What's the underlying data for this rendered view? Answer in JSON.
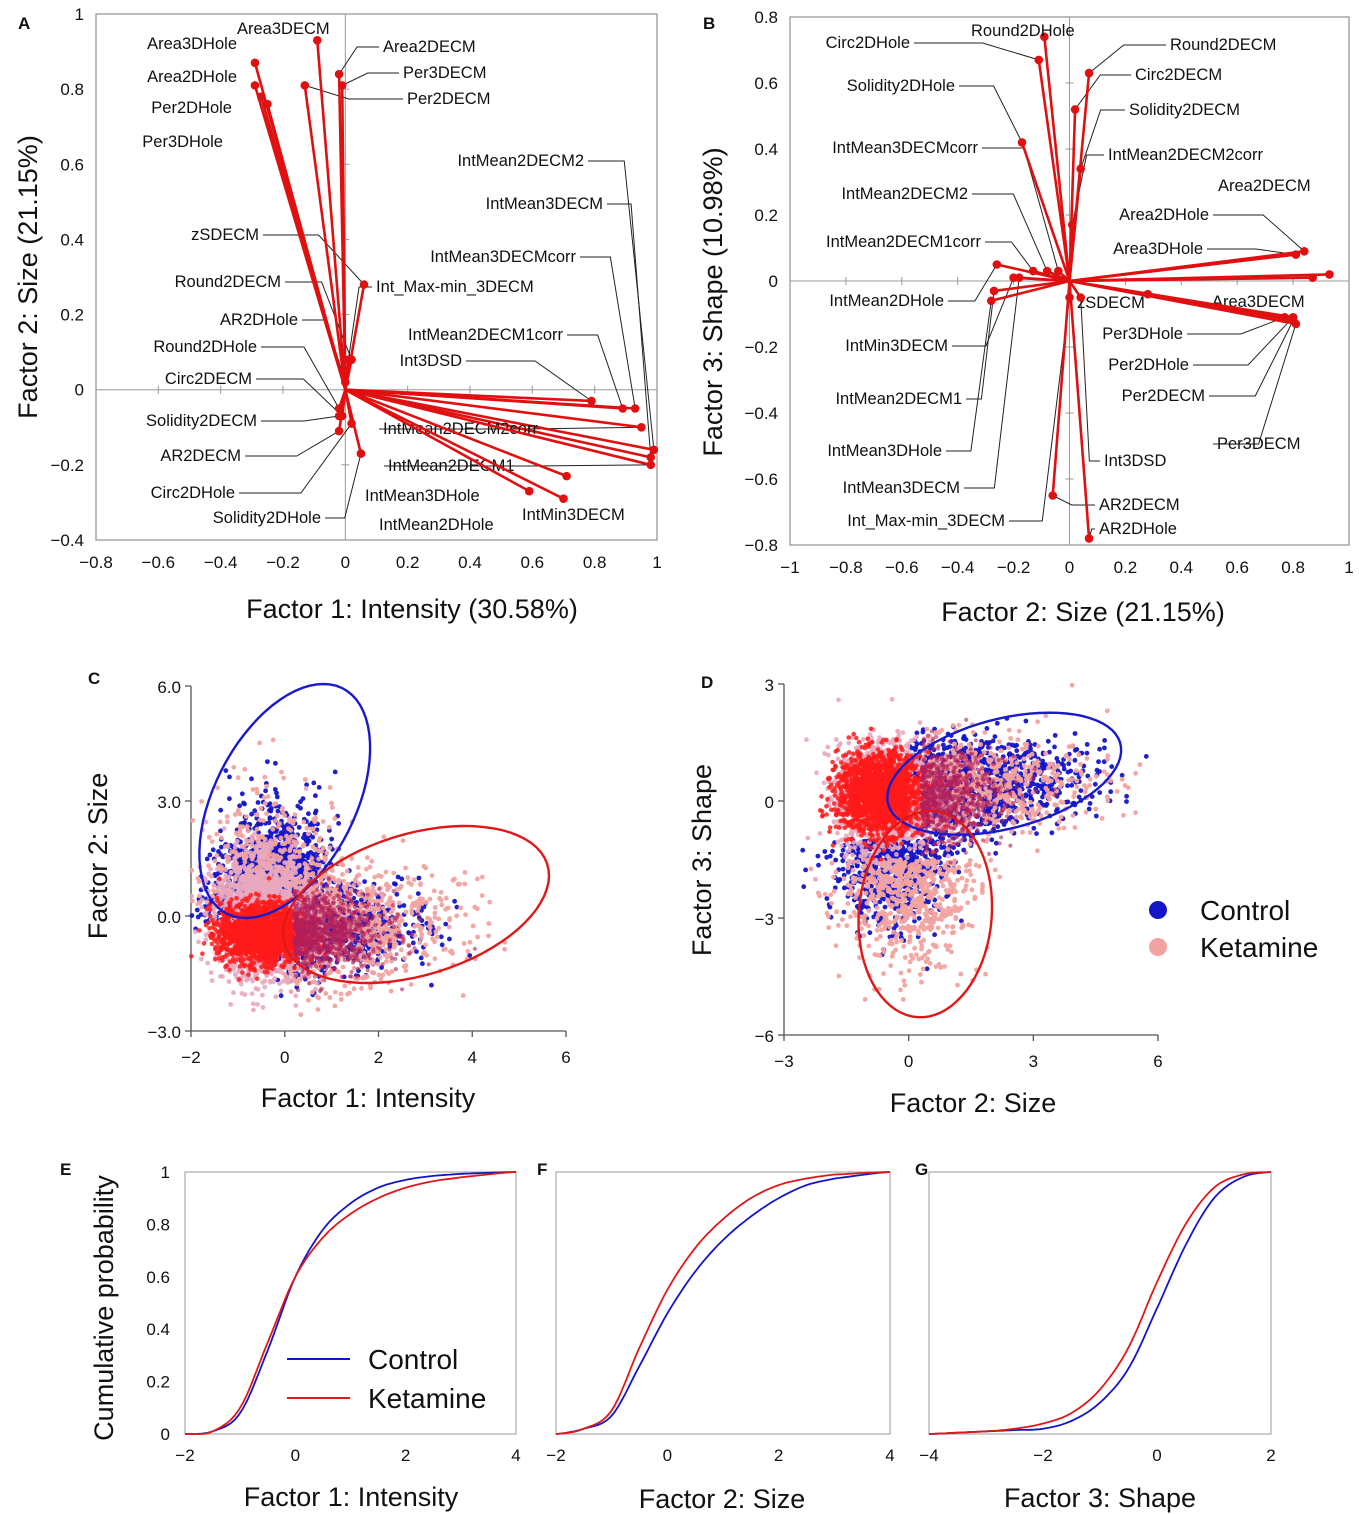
{
  "panels": {
    "A": {
      "letter": "A",
      "xlabel": "Factor 1: Intensity (30.58%)",
      "ylabel": "Factor 2: Size (21.15%)"
    },
    "B": {
      "letter": "B",
      "xlabel": "Factor 2: Size (21.15%)",
      "ylabel": "Factor 3: Shape (10.98%)"
    },
    "C": {
      "letter": "C",
      "xlabel": "Factor 1: Intensity",
      "ylabel": "Factor 2: Size"
    },
    "D": {
      "letter": "D",
      "xlabel": "Factor 2: Size",
      "ylabel": "Factor 3: Shape"
    },
    "E": {
      "letter": "E",
      "xlabel": "Factor 1: Intensity",
      "ylabel": "Cumulative probability"
    },
    "F": {
      "letter": "F",
      "xlabel": "Factor 2: Size"
    },
    "G": {
      "letter": "G",
      "xlabel": "Factor 3: Shape"
    }
  },
  "legend_scatter": {
    "control": "Control",
    "ketamine": "Ketamine"
  },
  "legend_cdf": {
    "control": "Control",
    "ketamine": "Ketamine"
  },
  "colors": {
    "control": "#1515c8",
    "ketamine": "#f2a3a0",
    "ketamine_line": "#e01818",
    "vector": "#e01010",
    "ellipse_control": "#1a1acd",
    "ellipse_ketamine": "#e01818"
  },
  "chart_data": [
    {
      "type": "biplot",
      "panel": "A",
      "xlim": [
        -0.8,
        1
      ],
      "ylim": [
        -0.4,
        1
      ],
      "xticks": [
        "−0.8",
        "−0.6",
        "−0.4",
        "−0.2",
        "0",
        "0.2",
        "0.4",
        "0.6",
        "0.8",
        "1"
      ],
      "yticks": [
        "−0.4",
        "−0.2",
        "0",
        "0.2",
        "0.4",
        "0.6",
        "0.8",
        "1"
      ],
      "vectors": [
        {
          "name": "Area3DECM",
          "x": -0.09,
          "y": 0.93
        },
        {
          "name": "Area3DHole",
          "x": -0.29,
          "y": 0.87
        },
        {
          "name": "Area2DHole",
          "x": -0.29,
          "y": 0.81
        },
        {
          "name": "Per2DHole",
          "x": -0.27,
          "y": 0.78
        },
        {
          "name": "Per3DHole",
          "x": -0.25,
          "y": 0.76
        },
        {
          "name": "Area2DECM",
          "x": -0.02,
          "y": 0.84
        },
        {
          "name": "Per3DECM",
          "x": -0.01,
          "y": 0.81
        },
        {
          "name": "Per2DECM",
          "x": -0.13,
          "y": 0.81
        },
        {
          "name": "zSDECM",
          "x": 0.06,
          "y": 0.28
        },
        {
          "name": "Int_Max-min_3DECM",
          "x": 0.01,
          "y": 0.08
        },
        {
          "name": "Round2DECM",
          "x": 0.02,
          "y": 0.08
        },
        {
          "name": "AR2DHole",
          "x": 0.0,
          "y": 0.02
        },
        {
          "name": "Round2DHole",
          "x": -0.02,
          "y": -0.05
        },
        {
          "name": "Circ2DECM",
          "x": -0.01,
          "y": -0.07
        },
        {
          "name": "Solidity2DECM",
          "x": -0.02,
          "y": -0.07
        },
        {
          "name": "AR2DECM",
          "x": -0.02,
          "y": -0.11
        },
        {
          "name": "Circ2DHole",
          "x": 0.02,
          "y": -0.09
        },
        {
          "name": "Solidity2DHole",
          "x": 0.05,
          "y": -0.17
        },
        {
          "name": "IntMean2DECM2",
          "x": 0.99,
          "y": -0.16
        },
        {
          "name": "IntMean3DECM",
          "x": 0.98,
          "y": -0.18
        },
        {
          "name": "IntMean3DECMcorr",
          "x": 0.93,
          "y": -0.05
        },
        {
          "name": "IntMean2DECM1corr",
          "x": 0.89,
          "y": -0.05
        },
        {
          "name": "Int3DSD",
          "x": 0.79,
          "y": -0.03
        },
        {
          "name": "IntMean2DECM2corr",
          "x": 0.95,
          "y": -0.1
        },
        {
          "name": "IntMean2DECM1",
          "x": 0.98,
          "y": -0.2
        },
        {
          "name": "IntMean3DHole",
          "x": 0.71,
          "y": -0.23
        },
        {
          "name": "IntMin3DECM",
          "x": 0.7,
          "y": -0.29
        },
        {
          "name": "IntMean2DHole",
          "x": 0.59,
          "y": -0.27
        }
      ]
    },
    {
      "type": "biplot",
      "panel": "B",
      "xlim": [
        -1,
        1
      ],
      "ylim": [
        -0.8,
        0.8
      ],
      "xticks": [
        "−1",
        "−0.8",
        "−0.6",
        "−0.4",
        "−0.2",
        "0",
        "0.2",
        "0.4",
        "0.6",
        "0.8",
        "1"
      ],
      "yticks": [
        "−0.8",
        "−0.6",
        "−0.4",
        "−0.2",
        "0",
        "0.2",
        "0.4",
        "0.6",
        "0.8"
      ],
      "vectors": [
        {
          "name": "Round2DHole",
          "x": -0.09,
          "y": 0.74
        },
        {
          "name": "Circ2DHole",
          "x": -0.11,
          "y": 0.67
        },
        {
          "name": "Round2DECM",
          "x": 0.07,
          "y": 0.63
        },
        {
          "name": "Circ2DECM",
          "x": 0.02,
          "y": 0.52
        },
        {
          "name": "Solidity2DHole",
          "x": -0.17,
          "y": 0.42
        },
        {
          "name": "Solidity2DECM",
          "x": 0.04,
          "y": 0.34
        },
        {
          "name": "IntMean2DECM2corr",
          "x": 0.01,
          "y": 0.17
        },
        {
          "name": "IntMean3DECMcorr",
          "x": -0.04,
          "y": 0.03
        },
        {
          "name": "IntMean2DECM2",
          "x": -0.08,
          "y": 0.03
        },
        {
          "name": "IntMean2DECM1corr",
          "x": -0.13,
          "y": 0.03
        },
        {
          "name": "Area2DECM",
          "x": 0.93,
          "y": 0.02
        },
        {
          "name": "Area2DHole",
          "x": 0.84,
          "y": 0.09
        },
        {
          "name": "Area3DHole",
          "x": 0.81,
          "y": 0.08
        },
        {
          "name": "Area3DECM",
          "x": 0.87,
          "y": 0.01
        },
        {
          "name": "zSDECM",
          "x": 0.28,
          "y": -0.04
        },
        {
          "name": "IntMean2DHole",
          "x": -0.26,
          "y": 0.05
        },
        {
          "name": "IntMin3DECM",
          "x": -0.2,
          "y": 0.01
        },
        {
          "name": "IntMean2DECM1",
          "x": -0.27,
          "y": -0.03
        },
        {
          "name": "IntMean3DHole",
          "x": -0.28,
          "y": -0.06
        },
        {
          "name": "IntMean3DECM",
          "x": -0.18,
          "y": 0.01
        },
        {
          "name": "Per3DHole",
          "x": 0.77,
          "y": -0.11
        },
        {
          "name": "Per2DHole",
          "x": 0.8,
          "y": -0.11
        },
        {
          "name": "Per2DECM",
          "x": 0.8,
          "y": -0.12
        },
        {
          "name": "Per3DECM",
          "x": 0.81,
          "y": -0.13
        },
        {
          "name": "Int3DSD",
          "x": 0.04,
          "y": -0.05
        },
        {
          "name": "Int_Max-min_3DECM",
          "x": 0.0,
          "y": -0.05
        },
        {
          "name": "AR2DECM",
          "x": -0.06,
          "y": -0.65
        },
        {
          "name": "AR2DHole",
          "x": 0.07,
          "y": -0.78
        }
      ]
    },
    {
      "type": "scatter",
      "panel": "C",
      "xlim": [
        -2,
        6
      ],
      "ylim": [
        -3,
        6
      ],
      "xticks": [
        "−2",
        "0",
        "2",
        "4",
        "6"
      ],
      "yticks": [
        "−3.0",
        "0.0",
        "3.0",
        "6.0"
      ],
      "clusters": {
        "control": {
          "center": [
            -0.4,
            0.4
          ],
          "ellipse": {
            "cx": 0.0,
            "cy": 3.0,
            "rx": 3.2,
            "ry": 1.55,
            "angle_deg": 70
          }
        },
        "ketamine": {
          "center": [
            -0.3,
            -0.5
          ],
          "ellipse": {
            "cx": 2.8,
            "cy": 0.3,
            "rx": 3.0,
            "ry": 1.8,
            "angle_deg": 24
          }
        }
      }
    },
    {
      "type": "scatter",
      "panel": "D",
      "xlim": [
        -3,
        6
      ],
      "ylim": [
        -6,
        3
      ],
      "xticks": [
        "−3",
        "0",
        "3",
        "6"
      ],
      "yticks": [
        "−6",
        "−3",
        "0",
        "3"
      ],
      "clusters": {
        "control": {
          "center": [
            -0.6,
            0.2
          ],
          "ellipse": {
            "cx": 2.3,
            "cy": 0.7,
            "rx": 2.9,
            "ry": 1.4,
            "angle_deg": 16
          }
        },
        "ketamine": {
          "center": [
            -0.6,
            -0.1
          ],
          "ellipse": {
            "cx": 0.4,
            "cy": -2.9,
            "rx": 2.65,
            "ry": 1.6,
            "angle_deg": 86
          }
        }
      }
    },
    {
      "type": "line",
      "panel": "E",
      "xlim": [
        -2,
        4
      ],
      "ylim": [
        0,
        1
      ],
      "xticks": [
        "−2",
        "0",
        "2",
        "4"
      ],
      "yticks": [
        "0",
        "0.2",
        "0.4",
        "0.6",
        "0.8",
        "1"
      ],
      "series": [
        {
          "name": "Control",
          "x": [
            -2,
            -1.5,
            -1,
            -0.5,
            0,
            0.5,
            1,
            1.5,
            2,
            2.5,
            3,
            4
          ],
          "y": [
            0,
            0.01,
            0.08,
            0.32,
            0.6,
            0.78,
            0.88,
            0.94,
            0.97,
            0.985,
            0.993,
            1
          ]
        },
        {
          "name": "Ketamine",
          "x": [
            -2,
            -1.5,
            -1,
            -0.5,
            0,
            0.5,
            1,
            1.5,
            2,
            2.5,
            3,
            4
          ],
          "y": [
            0,
            0.01,
            0.1,
            0.35,
            0.6,
            0.75,
            0.84,
            0.9,
            0.94,
            0.965,
            0.98,
            1
          ]
        }
      ]
    },
    {
      "type": "line",
      "panel": "F",
      "xlim": [
        -2,
        4
      ],
      "ylim": [
        0,
        1
      ],
      "xticks": [
        "−2",
        "0",
        "2",
        "4"
      ],
      "series": [
        {
          "name": "Control",
          "x": [
            -2,
            -1.5,
            -1,
            -0.5,
            0,
            0.5,
            1,
            1.5,
            2,
            2.5,
            3,
            4
          ],
          "y": [
            0,
            0.02,
            0.07,
            0.26,
            0.46,
            0.62,
            0.74,
            0.83,
            0.9,
            0.95,
            0.975,
            1
          ]
        },
        {
          "name": "Ketamine",
          "x": [
            -2,
            -1.5,
            -1,
            -0.5,
            0,
            0.5,
            1,
            1.5,
            2,
            2.5,
            3,
            4
          ],
          "y": [
            0,
            0.02,
            0.09,
            0.33,
            0.55,
            0.71,
            0.82,
            0.9,
            0.95,
            0.975,
            0.99,
            1
          ]
        }
      ]
    },
    {
      "type": "line",
      "panel": "G",
      "xlim": [
        -4,
        2
      ],
      "ylim": [
        0,
        1
      ],
      "xticks": [
        "−4",
        "−2",
        "0",
        "2"
      ],
      "series": [
        {
          "name": "Control",
          "x": [
            -4,
            -3.5,
            -3,
            -2.5,
            -2,
            -1.5,
            -1,
            -0.5,
            0,
            0.5,
            1,
            1.5,
            2
          ],
          "y": [
            0,
            0.005,
            0.01,
            0.015,
            0.02,
            0.05,
            0.12,
            0.25,
            0.48,
            0.72,
            0.9,
            0.98,
            1
          ]
        },
        {
          "name": "Ketamine",
          "x": [
            -4,
            -3.5,
            -3,
            -2.5,
            -2,
            -1.5,
            -1,
            -0.5,
            0,
            0.5,
            1,
            1.5,
            2
          ],
          "y": [
            0,
            0.005,
            0.01,
            0.02,
            0.04,
            0.08,
            0.17,
            0.33,
            0.58,
            0.8,
            0.94,
            0.99,
            1
          ]
        }
      ]
    }
  ]
}
